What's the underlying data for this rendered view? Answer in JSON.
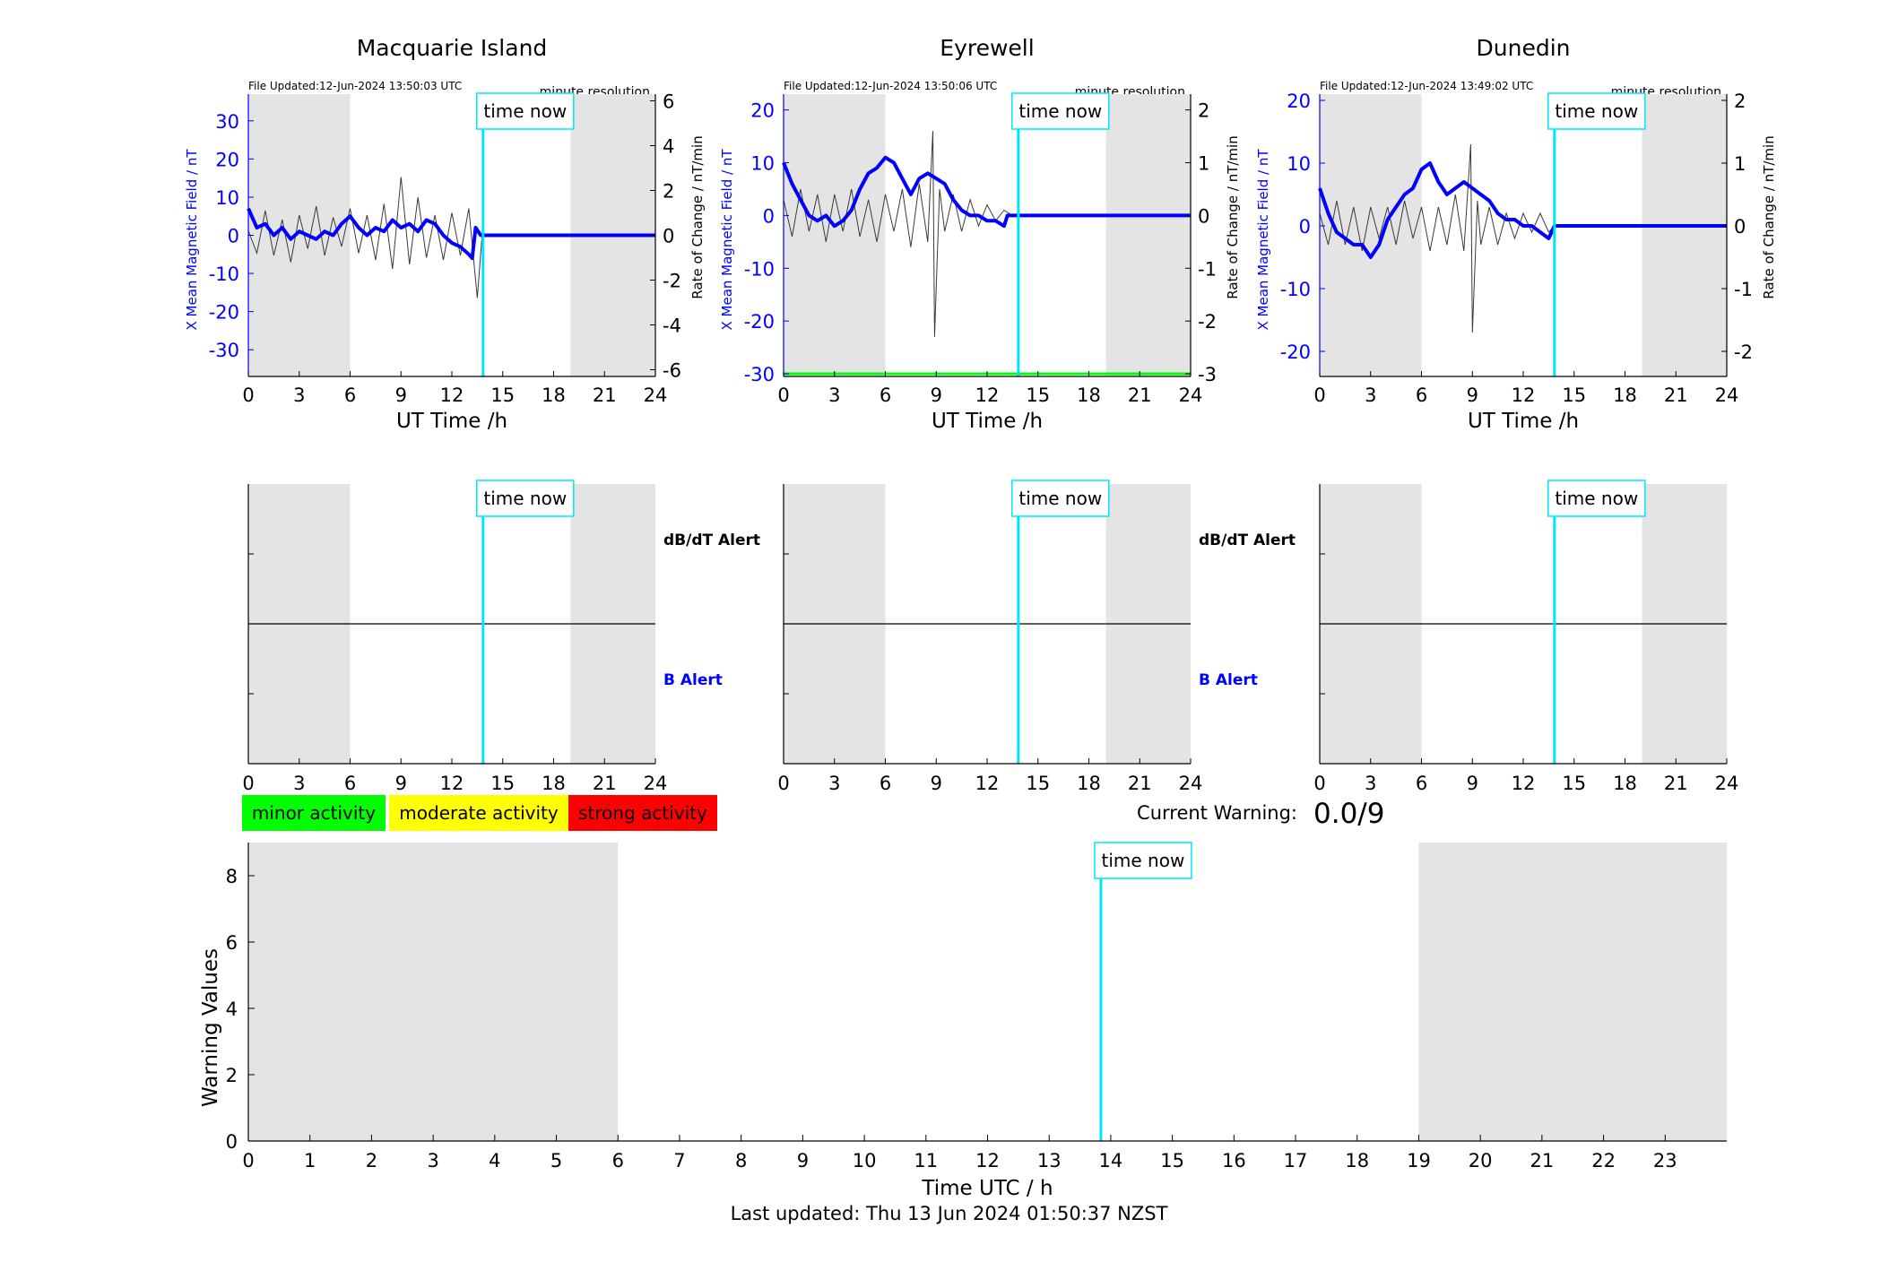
{
  "colors": {
    "field": "#0000ff",
    "rate": "#3a3a3a",
    "now_line": "#00e5ff",
    "night": "#e4e4e4",
    "minor": "#00ff00",
    "moderate": "#ffff00",
    "strong": "#ff0000"
  },
  "now_hour": 13.84,
  "stations": [
    {
      "name": "Macquarie Island",
      "file_updated": "File Updated:12-Jun-2024 13:50:03 UTC",
      "resolution": "minute resolution",
      "ylabel_left": "X Mean Magnetic Field / nT",
      "ylabel_right": "Rate of Change / nT/min",
      "xlabel": "UT Time /h",
      "ylim_left": [
        -37,
        37
      ],
      "ylim_right": [
        -6.3,
        6.3
      ],
      "yticks_left": [
        -30,
        -20,
        -10,
        0,
        10,
        20,
        30
      ],
      "yticks_right": [
        -6,
        -4,
        -2,
        0,
        2,
        4,
        6
      ],
      "night_hours": [
        [
          0,
          6
        ],
        [
          19,
          24
        ]
      ],
      "now_label": "time now",
      "field_series": [
        [
          0,
          7
        ],
        [
          0.5,
          2
        ],
        [
          1,
          3
        ],
        [
          1.5,
          0
        ],
        [
          2,
          2
        ],
        [
          2.5,
          -1
        ],
        [
          3,
          1
        ],
        [
          3.5,
          0
        ],
        [
          4,
          -1
        ],
        [
          4.5,
          1
        ],
        [
          5,
          0
        ],
        [
          5.5,
          3
        ],
        [
          6,
          5
        ],
        [
          6.5,
          2
        ],
        [
          7,
          0
        ],
        [
          7.5,
          2
        ],
        [
          8,
          1
        ],
        [
          8.5,
          4
        ],
        [
          9,
          2
        ],
        [
          9.5,
          3
        ],
        [
          10,
          1
        ],
        [
          10.5,
          4
        ],
        [
          11,
          3
        ],
        [
          11.5,
          0
        ],
        [
          12,
          -2
        ],
        [
          12.5,
          -3
        ],
        [
          13,
          -5
        ],
        [
          13.2,
          -6
        ],
        [
          13.4,
          2
        ],
        [
          13.7,
          0
        ],
        [
          13.84,
          0
        ],
        [
          24,
          0
        ]
      ],
      "rate_series": [
        [
          0,
          0.2
        ],
        [
          0.5,
          -0.8
        ],
        [
          1,
          1.1
        ],
        [
          1.5,
          -0.9
        ],
        [
          2,
          0.7
        ],
        [
          2.5,
          -1.2
        ],
        [
          3,
          0.9
        ],
        [
          3.5,
          -0.6
        ],
        [
          4,
          1.3
        ],
        [
          4.5,
          -0.9
        ],
        [
          5,
          0.8
        ],
        [
          5.5,
          -0.5
        ],
        [
          6,
          1.2
        ],
        [
          6.5,
          -0.8
        ],
        [
          7,
          0.9
        ],
        [
          7.5,
          -1.1
        ],
        [
          8,
          1.4
        ],
        [
          8.5,
          -1.5
        ],
        [
          9,
          2.6
        ],
        [
          9.5,
          -1.3
        ],
        [
          10,
          1.7
        ],
        [
          10.5,
          -1
        ],
        [
          11,
          0.9
        ],
        [
          11.5,
          -1.1
        ],
        [
          12,
          1
        ],
        [
          12.5,
          -0.9
        ],
        [
          13,
          1.2
        ],
        [
          13.5,
          -2.8
        ],
        [
          13.84,
          0.6
        ]
      ],
      "threshold_right": null
    },
    {
      "name": "Eyrewell",
      "file_updated": "File Updated:12-Jun-2024 13:50:06 UTC",
      "resolution": "minute resolution",
      "ylabel_left": "X Mean Magnetic Field / nT",
      "ylabel_right": "Rate of Change / nT/min",
      "xlabel": "UT Time /h",
      "ylim_left": [
        -30.5,
        23
      ],
      "ylim_right": [
        -3.05,
        2.3
      ],
      "yticks_left": [
        -30,
        -20,
        -10,
        0,
        10,
        20
      ],
      "yticks_right": [
        -3,
        -2,
        -1,
        0,
        1,
        2
      ],
      "night_hours": [
        [
          0,
          6
        ],
        [
          19,
          24
        ]
      ],
      "now_label": "time now",
      "field_series": [
        [
          0,
          10
        ],
        [
          0.5,
          6
        ],
        [
          1,
          3
        ],
        [
          1.5,
          0
        ],
        [
          2,
          -1
        ],
        [
          2.5,
          0
        ],
        [
          3,
          -2
        ],
        [
          3.5,
          -1
        ],
        [
          4,
          1
        ],
        [
          4.5,
          5
        ],
        [
          5,
          8
        ],
        [
          5.5,
          9
        ],
        [
          6,
          11
        ],
        [
          6.5,
          10
        ],
        [
          7,
          7
        ],
        [
          7.5,
          4
        ],
        [
          8,
          7
        ],
        [
          8.5,
          8
        ],
        [
          9,
          7
        ],
        [
          9.5,
          6
        ],
        [
          10,
          3
        ],
        [
          10.5,
          1
        ],
        [
          11,
          0
        ],
        [
          11.5,
          0
        ],
        [
          12,
          -1
        ],
        [
          12.5,
          -1
        ],
        [
          13,
          -2
        ],
        [
          13.2,
          0
        ],
        [
          13.84,
          0
        ],
        [
          24,
          0
        ]
      ],
      "rate_series": [
        [
          0,
          0.3
        ],
        [
          0.5,
          -0.4
        ],
        [
          1,
          0.5
        ],
        [
          1.5,
          -0.3
        ],
        [
          2,
          0.4
        ],
        [
          2.5,
          -0.5
        ],
        [
          3,
          0.4
        ],
        [
          3.5,
          -0.3
        ],
        [
          4,
          0.5
        ],
        [
          4.5,
          -0.4
        ],
        [
          5,
          0.3
        ],
        [
          5.5,
          -0.5
        ],
        [
          6,
          0.4
        ],
        [
          6.5,
          -0.3
        ],
        [
          7,
          0.5
        ],
        [
          7.5,
          -0.6
        ],
        [
          8,
          0.6
        ],
        [
          8.5,
          -0.5
        ],
        [
          8.8,
          1.6
        ],
        [
          8.9,
          -2.3
        ],
        [
          9.2,
          0.5
        ],
        [
          9.5,
          -0.3
        ],
        [
          10,
          0.4
        ],
        [
          10.5,
          -0.3
        ],
        [
          11,
          0.3
        ],
        [
          11.5,
          -0.2
        ],
        [
          12,
          0.2
        ],
        [
          12.5,
          -0.1
        ],
        [
          13,
          0.1
        ],
        [
          13.5,
          0
        ]
      ],
      "threshold_right": -3
    },
    {
      "name": "Dunedin",
      "file_updated": "File Updated:12-Jun-2024 13:49:02 UTC",
      "resolution": "minute resolution",
      "ylabel_left": "X Mean Magnetic Field / nT",
      "ylabel_right": "Rate of Change / nT/min",
      "xlabel": "UT Time /h",
      "ylim_left": [
        -24,
        21
      ],
      "ylim_right": [
        -2.4,
        2.1
      ],
      "yticks_left": [
        -20,
        -10,
        0,
        10,
        20
      ],
      "yticks_right": [
        -2,
        -1,
        0,
        1,
        2
      ],
      "night_hours": [
        [
          0,
          6
        ],
        [
          19,
          24
        ]
      ],
      "now_label": "time now",
      "field_series": [
        [
          0,
          6
        ],
        [
          0.5,
          2
        ],
        [
          1,
          -1
        ],
        [
          1.5,
          -2
        ],
        [
          2,
          -3
        ],
        [
          2.5,
          -3
        ],
        [
          3,
          -5
        ],
        [
          3.5,
          -3
        ],
        [
          4,
          1
        ],
        [
          4.5,
          3
        ],
        [
          5,
          5
        ],
        [
          5.5,
          6
        ],
        [
          6,
          9
        ],
        [
          6.5,
          10
        ],
        [
          7,
          7
        ],
        [
          7.5,
          5
        ],
        [
          8,
          6
        ],
        [
          8.5,
          7
        ],
        [
          9,
          6
        ],
        [
          9.5,
          5
        ],
        [
          10,
          4
        ],
        [
          10.5,
          2
        ],
        [
          11,
          1
        ],
        [
          11.5,
          1
        ],
        [
          12,
          0
        ],
        [
          12.5,
          0
        ],
        [
          13,
          -1
        ],
        [
          13.5,
          -2
        ],
        [
          13.84,
          0
        ],
        [
          24,
          0
        ]
      ],
      "rate_series": [
        [
          0,
          0.2
        ],
        [
          0.5,
          -0.3
        ],
        [
          1,
          0.4
        ],
        [
          1.5,
          -0.3
        ],
        [
          2,
          0.3
        ],
        [
          2.5,
          -0.4
        ],
        [
          3,
          0.3
        ],
        [
          3.5,
          -0.2
        ],
        [
          4,
          0.3
        ],
        [
          4.5,
          -0.3
        ],
        [
          5,
          0.4
        ],
        [
          5.5,
          -0.2
        ],
        [
          6,
          0.3
        ],
        [
          6.5,
          -0.4
        ],
        [
          7,
          0.3
        ],
        [
          7.5,
          -0.3
        ],
        [
          8,
          0.5
        ],
        [
          8.5,
          -0.4
        ],
        [
          8.9,
          1.3
        ],
        [
          9,
          -1.7
        ],
        [
          9.3,
          0.4
        ],
        [
          9.5,
          -0.3
        ],
        [
          10,
          0.3
        ],
        [
          10.5,
          -0.3
        ],
        [
          11,
          0.2
        ],
        [
          11.5,
          -0.2
        ],
        [
          12,
          0.2
        ],
        [
          12.5,
          -0.1
        ],
        [
          13,
          0.2
        ],
        [
          13.5,
          -0.1
        ],
        [
          13.84,
          0
        ]
      ],
      "threshold_right": null
    }
  ],
  "alerts": {
    "dbdt_label": "dB/dT Alert",
    "b_label": "B Alert",
    "now_label": "time now",
    "night_hours": [
      [
        0,
        6
      ],
      [
        19,
        24
      ]
    ]
  },
  "legend": {
    "minor": "minor activity",
    "moderate": "moderate activity",
    "strong": "strong activity"
  },
  "current_warning": {
    "label": "Current Warning:",
    "value": "0.0/9"
  },
  "chart_data": {
    "type": "line",
    "title": "",
    "xlabel": "Time UTC / h",
    "ylabel": "Warning Values",
    "xlim": [
      0,
      24
    ],
    "ylim": [
      0,
      9
    ],
    "xticks": [
      0,
      1,
      2,
      3,
      4,
      5,
      6,
      7,
      8,
      9,
      10,
      11,
      12,
      13,
      14,
      15,
      16,
      17,
      18,
      19,
      20,
      21,
      22,
      23
    ],
    "yticks": [
      0,
      2,
      4,
      6,
      8
    ],
    "night_hours": [
      [
        0,
        6
      ],
      [
        19,
        24
      ]
    ],
    "now_hour": 13.84,
    "now_label": "time now",
    "series": []
  },
  "footer": "Last updated: Thu 13 Jun 2024 01:50:37 NZST"
}
